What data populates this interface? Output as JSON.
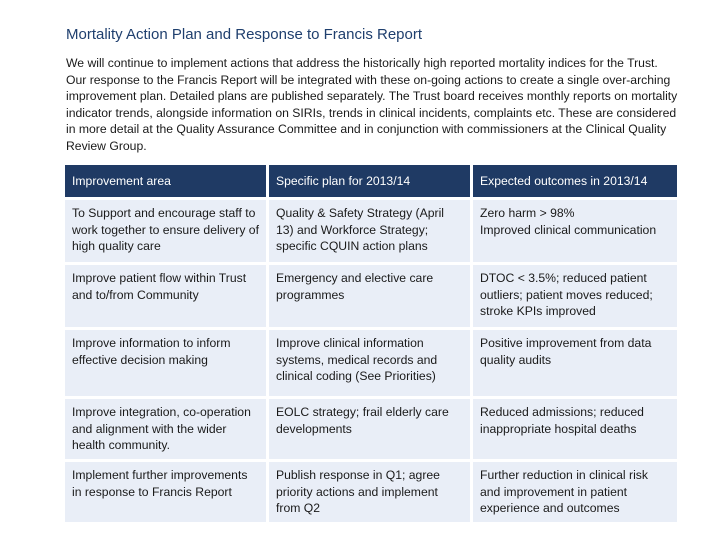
{
  "document": {
    "title": "Mortality Action Plan and Response to Francis Report",
    "intro": "We will continue to implement actions that address the historically high reported mortality indices for the Trust.  Our response to the Francis Report will be integrated with these on-going actions to create a single over-arching improvement plan. Detailed plans are published separately. The Trust board receives monthly reports on mortality indicator trends, alongside information on SIRIs, trends in clinical incidents, complaints etc. These are considered in more detail at the Quality Assurance Committee and in conjunction with commissioners at the Clinical Quality Review Group."
  },
  "table": {
    "headers": [
      "Improvement area",
      "Specific plan for 2013/14",
      "Expected outcomes in 2013/14"
    ],
    "rows": [
      [
        "To Support and encourage staff to work together to ensure delivery of high quality care",
        "Quality & Safety Strategy (April 13) and Workforce Strategy; specific CQUIN action plans",
        "Zero harm > 98%\nImproved clinical communication"
      ],
      [
        "Improve patient flow within Trust and to/from Community",
        "Emergency and elective care programmes",
        "DTOC < 3.5%; reduced patient outliers; patient moves reduced; stroke KPIs improved"
      ],
      [
        "Improve information to inform effective decision making",
        "Improve clinical information systems, medical records and clinical coding (See Priorities)",
        "Positive improvement from data quality audits"
      ],
      [
        "Improve integration, co-operation and alignment with the wider health community.",
        "EOLC strategy; frail elderly care developments",
        "Reduced admissions; reduced inappropriate hospital deaths"
      ],
      [
        "Implement further improvements in response to Francis Report",
        "Publish response in Q1; agree priority actions and implement from Q2",
        "Further reduction in clinical risk and improvement in patient experience and outcomes"
      ]
    ]
  },
  "colors": {
    "title": "#1f3f6e",
    "header_bg": "#1f3a64",
    "row_bg": "#e9eef7"
  }
}
